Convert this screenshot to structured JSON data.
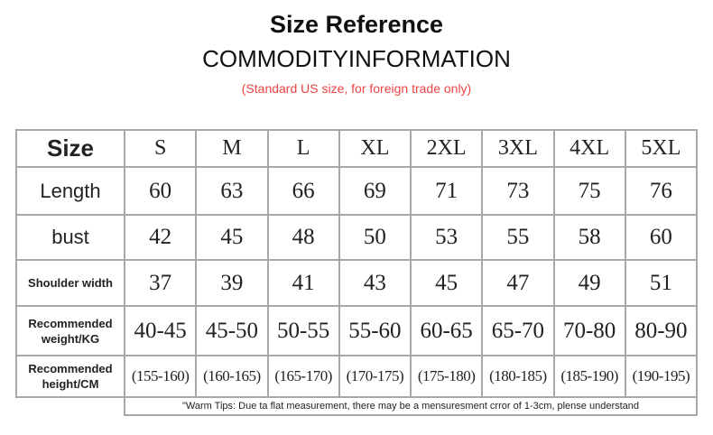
{
  "header": {
    "title": "Size Reference",
    "subtitle": "COMMODITYINFORMATION",
    "note": "(Standard US size, for foreign trade only)"
  },
  "table": {
    "rows": [
      {
        "label": "Size",
        "cells": [
          "S",
          "M",
          "L",
          "XL",
          "2XL",
          "3XL",
          "4XL",
          "5XL"
        ]
      },
      {
        "label": "Length",
        "cells": [
          "60",
          "63",
          "66",
          "69",
          "71",
          "73",
          "75",
          "76"
        ]
      },
      {
        "label": "bust",
        "cells": [
          "42",
          "45",
          "48",
          "50",
          "53",
          "55",
          "58",
          "60"
        ]
      },
      {
        "label": "Shoulder width",
        "cells": [
          "37",
          "39",
          "41",
          "43",
          "45",
          "47",
          "49",
          "51"
        ]
      },
      {
        "label": "Recommended weight/KG",
        "cells": [
          "40-45",
          "45-50",
          "50-55",
          "55-60",
          "60-65",
          "65-70",
          "70-80",
          "80-90"
        ]
      },
      {
        "label": "Recommended height/CM",
        "cells": [
          "(155-160)",
          "(160-165)",
          "(165-170)",
          "(170-175)",
          "(175-180)",
          "(180-185)",
          "(185-190)",
          "(190-195)"
        ]
      }
    ],
    "tips": "\"Warm Tips: Due ta flat measurement, there may be a mensuresment crror of 1-3cm, plense understand"
  }
}
